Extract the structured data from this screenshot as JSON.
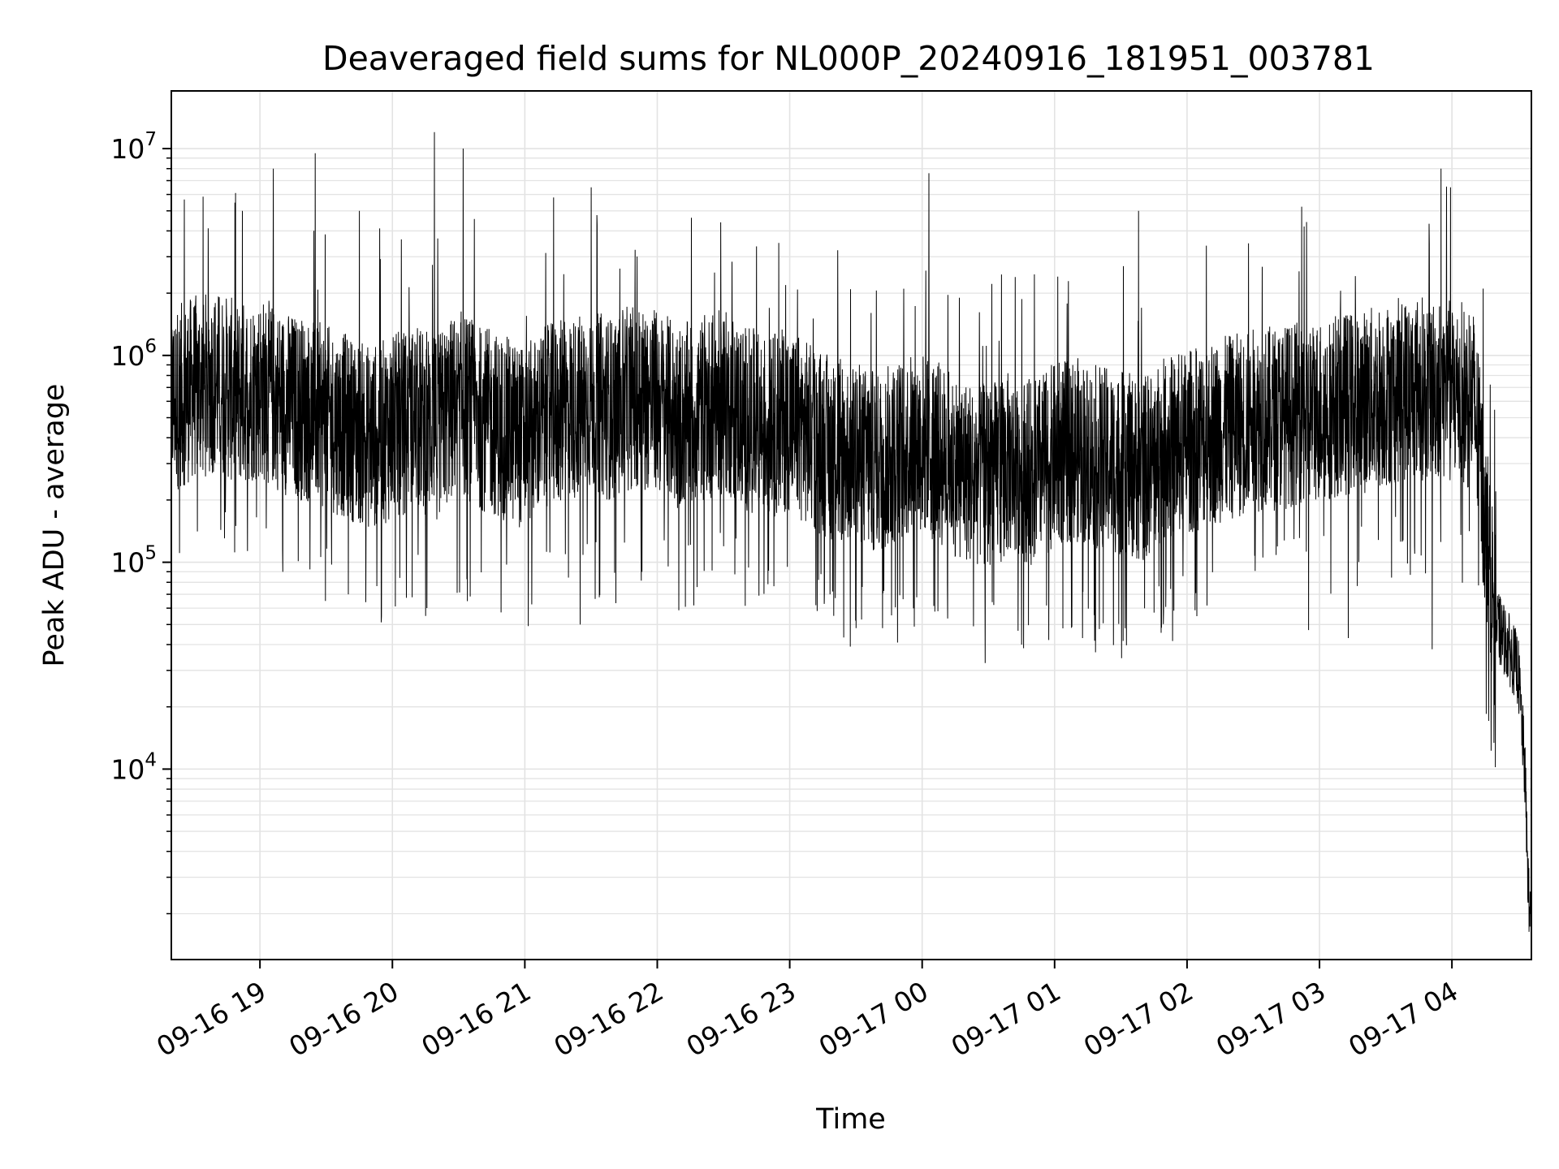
{
  "chart_data": {
    "type": "line",
    "title": "Deaveraged field sums for NL000P_20240916_181951_003781",
    "xlabel": "Time",
    "ylabel": "Peak ADU - average",
    "yscale": "log",
    "ylim": [
      1200,
      19000000
    ],
    "xlim": [
      "2024-09-16 18:19:51",
      "2024-09-17 04:36:00"
    ],
    "grid": true,
    "x_ticks": [
      {
        "t": "2024-09-16 19:00",
        "label": "09-16 19"
      },
      {
        "t": "2024-09-16 20:00",
        "label": "09-16 20"
      },
      {
        "t": "2024-09-16 21:00",
        "label": "09-16 21"
      },
      {
        "t": "2024-09-16 22:00",
        "label": "09-16 22"
      },
      {
        "t": "2024-09-16 23:00",
        "label": "09-16 23"
      },
      {
        "t": "2024-09-17 00:00",
        "label": "09-17 00"
      },
      {
        "t": "2024-09-17 01:00",
        "label": "09-17 01"
      },
      {
        "t": "2024-09-17 02:00",
        "label": "09-17 02"
      },
      {
        "t": "2024-09-17 03:00",
        "label": "09-17 03"
      },
      {
        "t": "2024-09-17 04:00",
        "label": "09-17 04"
      }
    ],
    "y_ticks": [
      {
        "value": 10000,
        "base": "10",
        "exp": "4"
      },
      {
        "value": 100000,
        "base": "10",
        "exp": "5"
      },
      {
        "value": 1000000,
        "base": "10",
        "exp": "6"
      },
      {
        "value": 10000000,
        "base": "10",
        "exp": "7"
      }
    ],
    "line_color": "#000000",
    "series": [
      {
        "x": [
          "2024-09-16 18:20",
          "2024-09-16 18:30",
          "2024-09-16 18:40",
          "2024-09-16 18:50",
          "2024-09-16 19:00",
          "2024-09-16 19:10",
          "2024-09-16 19:20",
          "2024-09-16 19:30",
          "2024-09-16 19:40",
          "2024-09-16 19:50",
          "2024-09-16 20:00",
          "2024-09-16 20:10",
          "2024-09-16 20:20",
          "2024-09-16 20:30",
          "2024-09-16 20:40",
          "2024-09-16 20:50",
          "2024-09-16 21:00",
          "2024-09-16 21:10",
          "2024-09-16 21:20",
          "2024-09-16 21:30",
          "2024-09-16 21:40",
          "2024-09-16 21:50",
          "2024-09-16 22:00",
          "2024-09-16 22:10",
          "2024-09-16 22:20",
          "2024-09-16 22:30",
          "2024-09-16 22:40",
          "2024-09-16 22:50",
          "2024-09-16 23:00",
          "2024-09-16 23:10",
          "2024-09-16 23:20",
          "2024-09-16 23:30",
          "2024-09-16 23:40",
          "2024-09-16 23:50",
          "2024-09-17 00:00",
          "2024-09-17 00:10",
          "2024-09-17 00:20",
          "2024-09-17 00:30",
          "2024-09-17 00:40",
          "2024-09-17 00:50",
          "2024-09-17 01:00",
          "2024-09-17 01:10",
          "2024-09-17 01:20",
          "2024-09-17 01:30",
          "2024-09-17 01:40",
          "2024-09-17 01:50",
          "2024-09-17 02:00",
          "2024-09-17 02:10",
          "2024-09-17 02:20",
          "2024-09-17 02:30",
          "2024-09-17 02:40",
          "2024-09-17 02:50",
          "2024-09-17 03:00",
          "2024-09-17 03:10",
          "2024-09-17 03:20",
          "2024-09-17 03:30",
          "2024-09-17 03:40",
          "2024-09-17 03:50",
          "2024-09-17 04:00",
          "2024-09-17 04:10",
          "2024-09-17 04:20",
          "2024-09-17 04:25",
          "2024-09-17 04:30",
          "2024-09-17 04:33",
          "2024-09-17 04:35"
        ],
        "y": [
          600000,
          700000,
          750000,
          650000,
          700000,
          600000,
          550000,
          500000,
          450000,
          400000,
          450000,
          500000,
          450000,
          600000,
          500000,
          450000,
          400000,
          500000,
          550000,
          600000,
          550000,
          650000,
          600000,
          500000,
          550000,
          600000,
          500000,
          450000,
          500000,
          400000,
          350000,
          330000,
          300000,
          350000,
          380000,
          320000,
          280000,
          260000,
          300000,
          270000,
          330000,
          350000,
          320000,
          300000,
          280000,
          350000,
          380000,
          420000,
          450000,
          480000,
          500000,
          520000,
          550000,
          580000,
          600000,
          650000,
          700000,
          700000,
          680000,
          600000,
          50000,
          40000,
          30000,
          10000,
          2000
        ],
        "spikes": [
          {
            "t": "2024-09-16 18:52",
            "v": 5000000
          },
          {
            "t": "2024-09-16 19:06",
            "v": 8000000
          },
          {
            "t": "2024-09-16 19:25",
            "v": 9500000
          },
          {
            "t": "2024-09-16 19:45",
            "v": 5000000
          },
          {
            "t": "2024-09-16 20:19",
            "v": 12000000
          },
          {
            "t": "2024-09-16 20:32",
            "v": 10000000
          },
          {
            "t": "2024-09-16 21:13",
            "v": 5800000
          },
          {
            "t": "2024-09-16 21:30",
            "v": 6500000
          },
          {
            "t": "2024-09-16 22:55",
            "v": 3500000
          },
          {
            "t": "2024-09-17 00:03",
            "v": 7600000
          },
          {
            "t": "2024-09-17 01:38",
            "v": 5000000
          },
          {
            "t": "2024-09-17 02:53",
            "v": 4200000
          },
          {
            "t": "2024-09-17 03:55",
            "v": 8000000
          }
        ],
        "dips": [
          {
            "t": "2024-09-16 19:40",
            "v": 70000
          },
          {
            "t": "2024-09-16 19:55",
            "v": 55000
          },
          {
            "t": "2024-09-16 20:15",
            "v": 55000
          },
          {
            "t": "2024-09-16 21:25",
            "v": 50000
          },
          {
            "t": "2024-09-16 23:30",
            "v": 48000
          },
          {
            "t": "2024-09-16 23:42",
            "v": 48000
          },
          {
            "t": "2024-09-17 00:45",
            "v": 40000
          },
          {
            "t": "2024-09-17 02:55",
            "v": 47000
          },
          {
            "t": "2024-09-17 03:13",
            "v": 43000
          },
          {
            "t": "2024-09-17 03:51",
            "v": 38000
          }
        ]
      }
    ]
  }
}
